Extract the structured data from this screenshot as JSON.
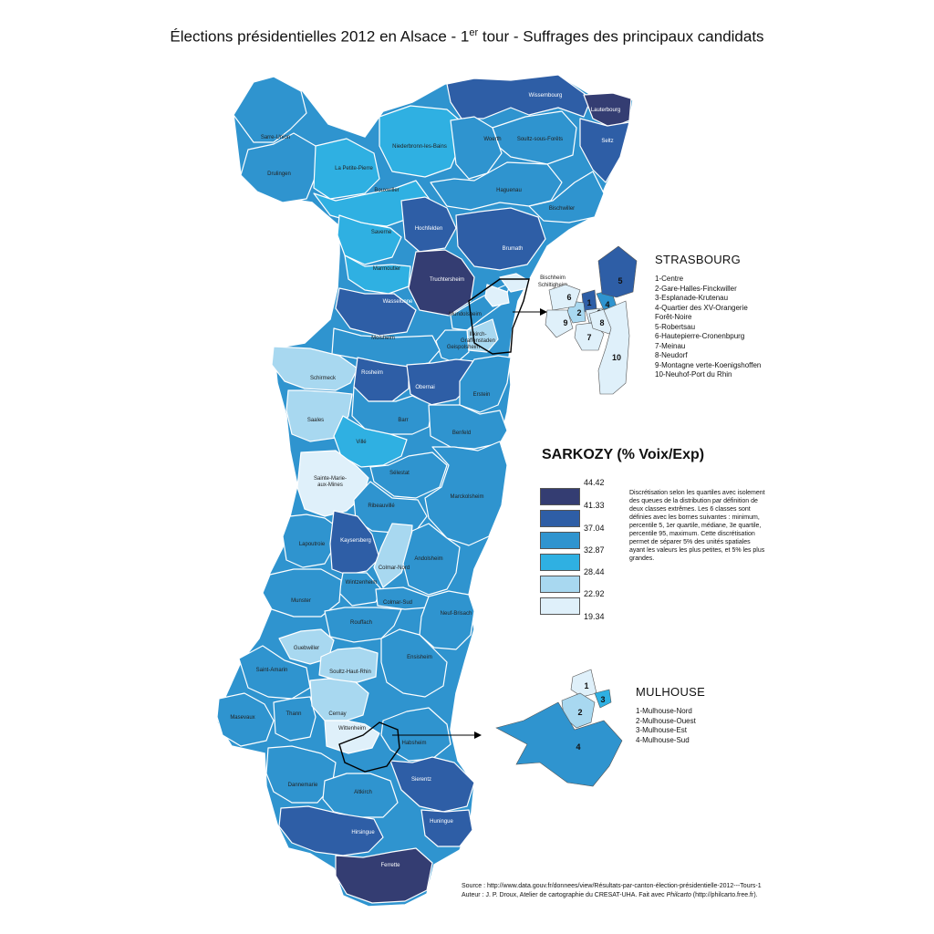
{
  "title": {
    "main": "Élections présidentielles 2012 en Alsace - 1",
    "sup": "er",
    "rest": " tour - Suffrages des principaux candidats"
  },
  "colors": {
    "c1": "#343d72",
    "c2": "#2e5ea6",
    "c3": "#2f94cf",
    "c4": "#2fb0e2",
    "c5": "#a8d8f0",
    "c6": "#dff0fa",
    "border": "#ffffff"
  },
  "cantons": [
    {
      "name": "Wissembourg",
      "cls": 2
    },
    {
      "name": "Lauterbourg",
      "cls": 1
    },
    {
      "name": "Seltz",
      "cls": 2
    },
    {
      "name": "Sarre-Union",
      "cls": 3
    },
    {
      "name": "Drulingen",
      "cls": 3
    },
    {
      "name": "La Petite-Pierre",
      "cls": 4
    },
    {
      "name": "Niederbronn-les-Bains",
      "cls": 4
    },
    {
      "name": "Woerth",
      "cls": 3
    },
    {
      "name": "Soultz-sous-Forêts",
      "cls": 3
    },
    {
      "name": "Bouxwiller",
      "cls": 4
    },
    {
      "name": "Haguenau",
      "cls": 3
    },
    {
      "name": "Bischwiller",
      "cls": 3
    },
    {
      "name": "Saverne",
      "cls": 4
    },
    {
      "name": "Hochfelden",
      "cls": 2
    },
    {
      "name": "Brumath",
      "cls": 2
    },
    {
      "name": "Marmoutier",
      "cls": 4
    },
    {
      "name": "Truchtersheim",
      "cls": 1
    },
    {
      "name": "Wasselonne",
      "cls": 2
    },
    {
      "name": "Mundolsheim",
      "cls": 3
    },
    {
      "name": "Illkirch-Graffenstaden",
      "cls": 5
    },
    {
      "name": "Geispolsheim",
      "cls": 3
    },
    {
      "name": "Molsheim",
      "cls": 3
    },
    {
      "name": "Schirmeck",
      "cls": 5
    },
    {
      "name": "Rosheim",
      "cls": 2
    },
    {
      "name": "Obernai",
      "cls": 2
    },
    {
      "name": "Erstein",
      "cls": 3
    },
    {
      "name": "Saales",
      "cls": 5
    },
    {
      "name": "Barr",
      "cls": 3
    },
    {
      "name": "Benfeld",
      "cls": 3
    },
    {
      "name": "Villé",
      "cls": 4
    },
    {
      "name": "Sélestat",
      "cls": 3
    },
    {
      "name": "Sainte-Marie-aux-Mines",
      "cls": 6
    },
    {
      "name": "Marckolsheim",
      "cls": 3
    },
    {
      "name": "Ribeauvillé",
      "cls": 3
    },
    {
      "name": "Lapoutroie",
      "cls": 3
    },
    {
      "name": "Kaysersberg",
      "cls": 2
    },
    {
      "name": "Colmar-Nord",
      "cls": 5
    },
    {
      "name": "Andolsheim",
      "cls": 3
    },
    {
      "name": "Wintzenheim",
      "cls": 3
    },
    {
      "name": "Colmar-Sud",
      "cls": 3
    },
    {
      "name": "Munster",
      "cls": 3
    },
    {
      "name": "Neuf-Brisach",
      "cls": 3
    },
    {
      "name": "Rouffach",
      "cls": 3
    },
    {
      "name": "Guebwiller",
      "cls": 5
    },
    {
      "name": "Ensisheim",
      "cls": 3
    },
    {
      "name": "Soultz-Haut-Rhin",
      "cls": 5
    },
    {
      "name": "Saint-Amarin",
      "cls": 3
    },
    {
      "name": "Masevaux",
      "cls": 3
    },
    {
      "name": "Thann",
      "cls": 3
    },
    {
      "name": "Cernay",
      "cls": 5
    },
    {
      "name": "Wittenheim",
      "cls": 6
    },
    {
      "name": "Habsheim",
      "cls": 3
    },
    {
      "name": "Sierentz",
      "cls": 2
    },
    {
      "name": "Dannemarie",
      "cls": 3
    },
    {
      "name": "Altkirch",
      "cls": 3
    },
    {
      "name": "Huningue",
      "cls": 2
    },
    {
      "name": "Hirsingue",
      "cls": 2
    },
    {
      "name": "Ferrette",
      "cls": 1
    },
    {
      "name": "Bischheim",
      "cls": 6
    },
    {
      "name": "Schiltigheim",
      "cls": 6
    }
  ],
  "strasbourg": {
    "title": "STRASBOURG",
    "items": [
      "1-Centre",
      "2-Gare-Halles-Finckwiller",
      "3-Esplanade-Krutenau",
      "4-Quartier des XV-Orangerie",
      "Forêt-Noire",
      "5-Robertsau",
      "6-Hautepierre-Cronenbpurg",
      "7-Meinau",
      "8-Neudorf",
      "9-Montagne verte-Koenigshoffen",
      "10-Neuhof-Port du Rhin"
    ],
    "zones": [
      "1",
      "2",
      "3",
      "4",
      "5",
      "6",
      "7",
      "8",
      "9",
      "10"
    ]
  },
  "mulhouse": {
    "title": "MULHOUSE",
    "items": [
      "1-Mulhouse-Nord",
      "2-Mulhouse-Ouest",
      "3-Mulhouse-Est",
      "4-Mulhouse-Sud"
    ],
    "zones": [
      "1",
      "2",
      "3",
      "4"
    ]
  },
  "legend": {
    "title": "SARKOZY (% Voix/Exp)",
    "breaks": [
      "44.42",
      "41.33",
      "37.04",
      "32.87",
      "28.44",
      "22.92",
      "19.34"
    ],
    "note": "Discrétisation selon les quartiles avec isolement des queues de la distribution par définition de deux classes extrêmes. Les 6 classes sont définies avec les bornes suivantes : minimum, percentile 5, 1er quartile, médiane, 3e quartile, percentile 95, maximum. Cette discrétisation permet de séparer 5% des unités spatiales ayant les valeurs les plus petites, et 5% les plus grandes."
  },
  "footer": {
    "source": "Source : http://www.data.gouv.fr/donnees/view/Résultats-par-canton-élection-présidentielle-2012---Tours-1",
    "author_prefix": "Auteur : J. P. Droux, Atelier de cartographie du CRESAT-UHA. Fait avec ",
    "author_tool": "Philcarto",
    "author_suffix": " (http://philcarto.free.fr)."
  }
}
